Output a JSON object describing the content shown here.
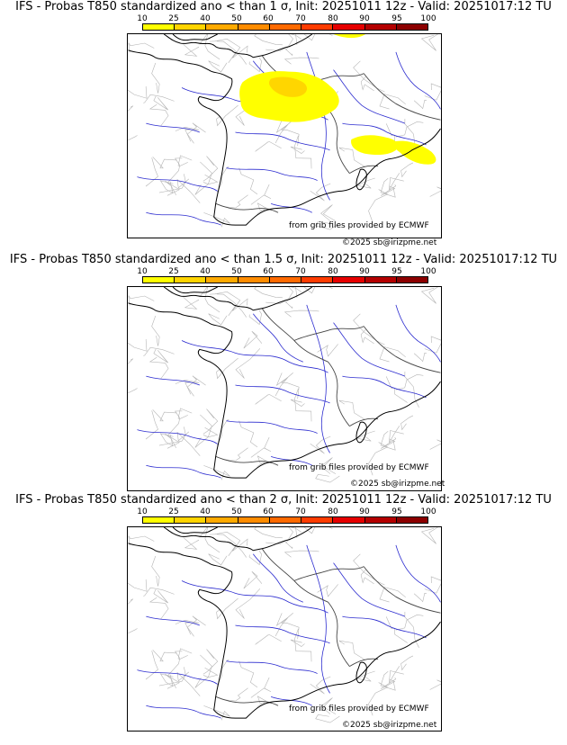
{
  "scale": {
    "ticks": [
      "10",
      "25",
      "40",
      "50",
      "60",
      "70",
      "80",
      "90",
      "95",
      "100"
    ],
    "colors": [
      "#ffff00",
      "#ffd400",
      "#ffaa00",
      "#ff8c00",
      "#ff6a00",
      "#ff3c00",
      "#e60000",
      "#b40000",
      "#8c0000",
      "#5a0000"
    ]
  },
  "panels": [
    {
      "title": "IFS - Probas T850  standardized ano < than 1 σ, Init: 20251011 12z - Valid: 20251017:12 TU",
      "credit_source": "from grib files provided by ECMWF",
      "credit_copyright": "©2025 sb@irizpme.net",
      "has_anomaly": true
    },
    {
      "title": "IFS - Probas T850  standardized ano < than 1.5 σ, Init: 20251011 12z - Valid: 20251017:12 TU",
      "credit_source": "from grib files provided by ECMWF",
      "credit_copyright": "©2025 sb@irizpme.net",
      "has_anomaly": false
    },
    {
      "title": "IFS - Probas T850  standardized ano < than 2 σ, Init: 20251011 12z - Valid: 20251017:12 TU",
      "credit_source": "from grib files provided by ECMWF",
      "credit_copyright": "©2025 sb@irizpme.net",
      "has_anomaly": false
    }
  ]
}
